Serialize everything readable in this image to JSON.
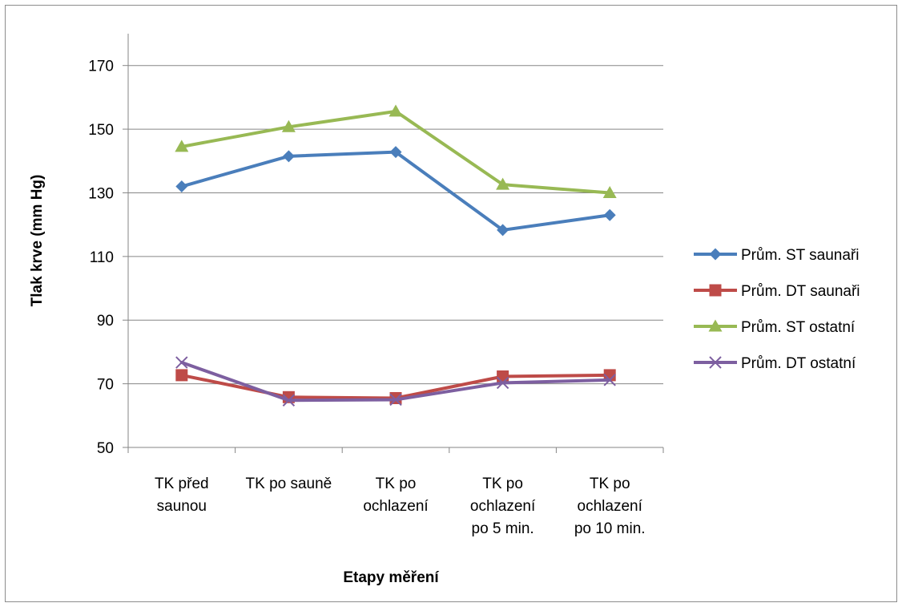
{
  "chart_data": {
    "type": "line",
    "title": "",
    "xlabel": "Etapy měření",
    "ylabel": "Tlak krve (mm Hg)",
    "ylim": [
      50,
      180
    ],
    "yticks": [
      50,
      70,
      90,
      110,
      130,
      150,
      170
    ],
    "grid": true,
    "legend": "right",
    "categories": [
      [
        "TK před",
        "saunou"
      ],
      [
        "TK po sauně"
      ],
      [
        "TK po",
        "ochlazení"
      ],
      [
        "TK po",
        "ochlazení",
        "po 5 min."
      ],
      [
        "TK po",
        "ochlazení",
        "po 10 min."
      ]
    ],
    "series": [
      {
        "name": "Prům. ST saunaři",
        "color": "#4a7ebb",
        "marker": "diamond",
        "values": [
          132,
          141.5,
          142.8,
          118.3,
          123
        ]
      },
      {
        "name": "Prům. DT saunaři",
        "color": "#be4b48",
        "marker": "square",
        "values": [
          72.7,
          65.8,
          65.5,
          72.3,
          72.7
        ]
      },
      {
        "name": "Prům. ST ostatní",
        "color": "#98b954",
        "marker": "triangle",
        "values": [
          144.5,
          150.7,
          155.6,
          132.6,
          130
        ]
      },
      {
        "name": "Prům. DT ostatní",
        "color": "#7d5fa0",
        "marker": "x",
        "values": [
          76.7,
          64.8,
          65,
          70.3,
          71.2
        ]
      }
    ]
  }
}
